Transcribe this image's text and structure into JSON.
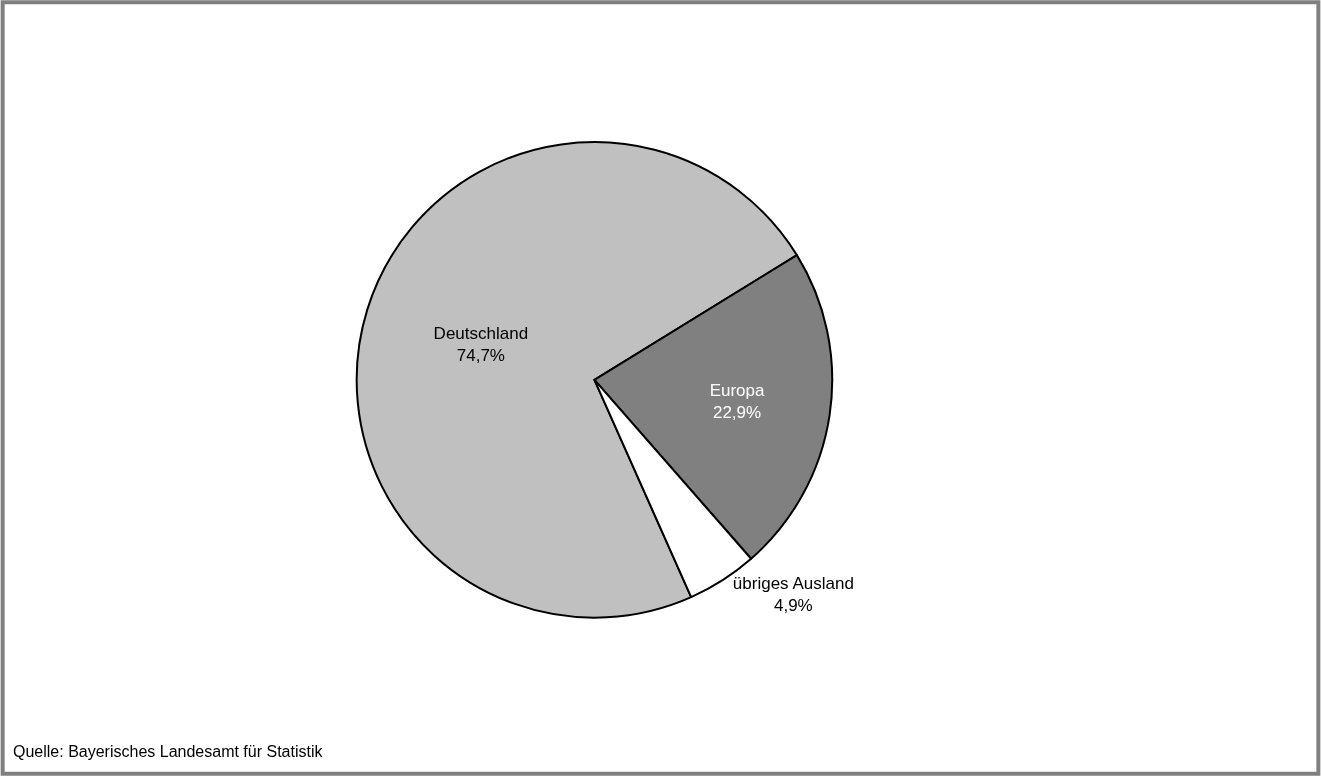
{
  "chart_data": {
    "type": "pie",
    "categories": [
      "Deutschland",
      "Europa",
      "übriges Ausland"
    ],
    "values": [
      74.7,
      22.9,
      4.9
    ],
    "value_labels": [
      "74,7%",
      "22,9%",
      "4,9%"
    ],
    "colors": [
      "#c0c0c0",
      "#808080",
      "#ffffff"
    ],
    "legend": false,
    "annotations": [
      "Quelle: Bayerisches Landesamt für Statistik"
    ]
  }
}
